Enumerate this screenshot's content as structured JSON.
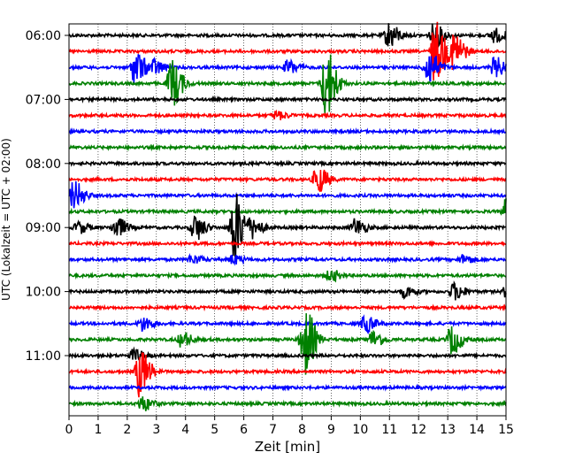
{
  "chart_data": {
    "type": "line",
    "chart_kind": "helicorder",
    "xlabel": "Zeit  [min]",
    "ylabel": "UTC (Lokalzeit = UTC + 02:00)",
    "xlim": [
      0,
      15
    ],
    "x_ticks": [
      "0",
      "1",
      "2",
      "3",
      "4",
      "5",
      "6",
      "7",
      "8",
      "9",
      "10",
      "11",
      "12",
      "13",
      "14",
      "15"
    ],
    "vertical_grid": "dotted",
    "y_ticks": [
      {
        "label": "06:00",
        "row": 0
      },
      {
        "label": "07:00",
        "row": 4
      },
      {
        "label": "08:00",
        "row": 8
      },
      {
        "label": "09:00",
        "row": 12
      },
      {
        "label": "10:00",
        "row": 16
      },
      {
        "label": "11:00",
        "row": 20
      }
    ],
    "row_minutes": 15,
    "row_colors": [
      "#000000",
      "#ff0000",
      "#0000ff",
      "#008000"
    ],
    "rows": [
      {
        "row": 0,
        "events": [
          {
            "t": 10.95,
            "amp": 0.9
          },
          {
            "t": 12.5,
            "amp": 0.8
          },
          {
            "t": 14.55,
            "amp": 0.5
          }
        ]
      },
      {
        "row": 1,
        "events": [
          {
            "t": 12.55,
            "amp": 2.2
          },
          {
            "t": 13.2,
            "amp": 1.3
          }
        ]
      },
      {
        "row": 2,
        "events": [
          {
            "t": 2.25,
            "amp": 1.2
          },
          {
            "t": 2.9,
            "amp": 0.5
          },
          {
            "t": 7.5,
            "amp": 0.5
          },
          {
            "t": 12.3,
            "amp": 1.3
          },
          {
            "t": 14.6,
            "amp": 0.7
          }
        ]
      },
      {
        "row": 3,
        "events": [
          {
            "t": 3.5,
            "amp": 1.7
          },
          {
            "t": 8.8,
            "amp": 2.5
          }
        ]
      },
      {
        "row": 4,
        "events": []
      },
      {
        "row": 5,
        "events": [
          {
            "t": 7.1,
            "amp": 0.3
          }
        ]
      },
      {
        "row": 6,
        "events": []
      },
      {
        "row": 7,
        "events": []
      },
      {
        "row": 8,
        "events": []
      },
      {
        "row": 9,
        "events": [
          {
            "t": 8.5,
            "amp": 1.0
          }
        ]
      },
      {
        "row": 10,
        "events": [
          {
            "t": 0.15,
            "amp": 1.0
          }
        ]
      },
      {
        "row": 11,
        "events": [
          {
            "t": 15.0,
            "amp": 0.9
          }
        ]
      },
      {
        "row": 12,
        "events": [
          {
            "t": 0.3,
            "amp": 0.4
          },
          {
            "t": 1.6,
            "amp": 0.7
          },
          {
            "t": 4.3,
            "amp": 0.9
          },
          {
            "t": 5.65,
            "amp": 2.5
          },
          {
            "t": 6.3,
            "amp": 0.6
          },
          {
            "t": 9.8,
            "amp": 0.6
          }
        ]
      },
      {
        "row": 13,
        "events": []
      },
      {
        "row": 14,
        "events": [
          {
            "t": 4.2,
            "amp": 0.3
          },
          {
            "t": 5.6,
            "amp": 0.3
          },
          {
            "t": 13.5,
            "amp": 0.3
          }
        ]
      },
      {
        "row": 15,
        "events": [
          {
            "t": 8.95,
            "amp": 0.4
          }
        ]
      },
      {
        "row": 16,
        "events": [
          {
            "t": 11.5,
            "amp": 0.4
          },
          {
            "t": 13.2,
            "amp": 0.6
          },
          {
            "t": 15.0,
            "amp": 0.4
          }
        ]
      },
      {
        "row": 17,
        "events": []
      },
      {
        "row": 18,
        "events": [
          {
            "t": 2.5,
            "amp": 0.5
          },
          {
            "t": 10.15,
            "amp": 0.6
          }
        ]
      },
      {
        "row": 19,
        "events": [
          {
            "t": 3.85,
            "amp": 0.5
          },
          {
            "t": 8.05,
            "amp": 2.5
          },
          {
            "t": 10.4,
            "amp": 0.6
          },
          {
            "t": 13.1,
            "amp": 1.0
          }
        ]
      },
      {
        "row": 20,
        "events": [
          {
            "t": 2.2,
            "amp": 0.4
          }
        ]
      },
      {
        "row": 21,
        "events": [
          {
            "t": 2.4,
            "amp": 1.7
          }
        ]
      },
      {
        "row": 22,
        "events": []
      },
      {
        "row": 23,
        "events": [
          {
            "t": 2.5,
            "amp": 0.5
          }
        ]
      }
    ]
  }
}
